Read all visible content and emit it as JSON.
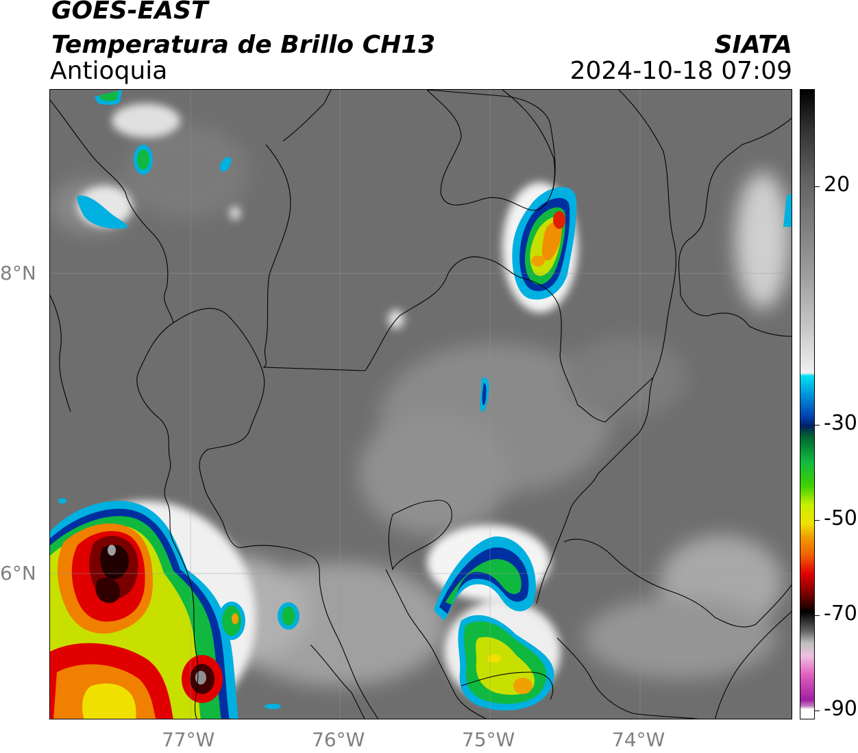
{
  "header": {
    "satellite": "GOES-EAST",
    "product": "Temperatura de Brillo CH13",
    "region": "Antioquia",
    "agency": "SIATA",
    "datetime": "2024-10-18 07:09"
  },
  "map": {
    "lon_ticks": [
      "77°W",
      "76°W",
      "75°W",
      "74°W"
    ],
    "lat_ticks": [
      "8°N",
      "6°N"
    ]
  },
  "colorbar": {
    "labels": [
      "20",
      "-30",
      "-50",
      "-70",
      "-90"
    ],
    "colors": {
      "warm_high": "#000000",
      "gray_mid": "#808080",
      "white": "#ffffff",
      "cyan": "#00c8e6",
      "blue": "#0030a0",
      "green": "#10b840",
      "yellow": "#f0f000",
      "orange": "#f08000",
      "red": "#e00000",
      "dark_red": "#500000",
      "pink": "#e060c0",
      "purple": "#901090"
    }
  }
}
